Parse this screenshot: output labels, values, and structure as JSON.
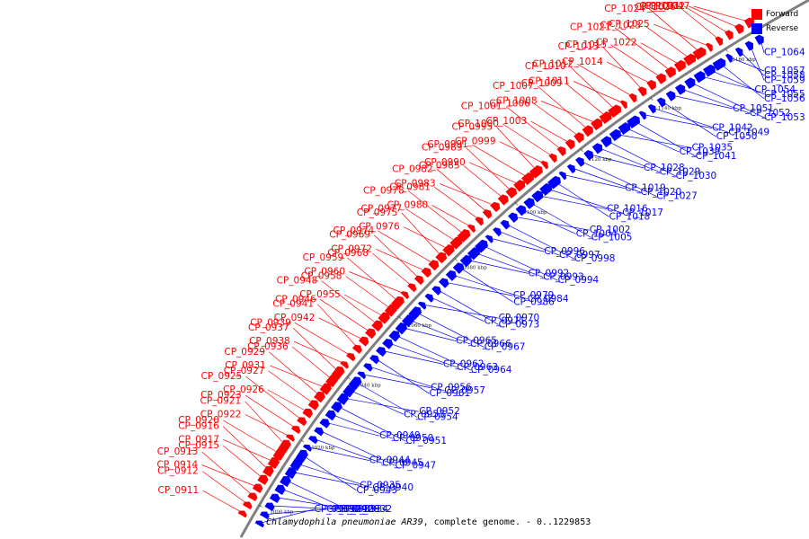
{
  "title": {
    "organism": "Chlamydophila pneumoniae AR39",
    "rest": ", complete genome. - 0..1229853"
  },
  "legend": [
    {
      "label": "Forward",
      "color": "#ff0000"
    },
    {
      "label": "Reverse",
      "color": "#0000ff"
    }
  ],
  "colors": {
    "forward": "#ff0000",
    "reverse": "#0000ff",
    "backbone": "#808080"
  },
  "scale_ticks": [
    "1000 kbp",
    "1020 kbp",
    "1040 kbp",
    "1060 kbp",
    "1080 kbp",
    "1100 kbp",
    "1120 kbp",
    "1140 kbp",
    "1160 kbp"
  ],
  "forward_genes": [
    "CP_0911",
    "CP_0912",
    "CP_0913",
    "CP_0914",
    "CP_0915",
    "CP_0916",
    "CP_0917",
    "CP_0920",
    "CP_0921",
    "CP_0922",
    "CP_0923",
    "CP_0925",
    "CP_0926",
    "CP_0927",
    "CP_0929",
    "CP_0931",
    "CP_0936",
    "CP_0937",
    "CP_0938",
    "CP_0939",
    "CP_0941",
    "CP_0942",
    "CP_0946",
    "CP_0948",
    "CP_0955",
    "CP_0958",
    "CP_0959",
    "CP_0960",
    "CP_0968",
    "CP_0969",
    "CP_0972",
    "CP_0974",
    "CP_0975",
    "CP_0976",
    "CP_0977",
    "CP_0978",
    "CP_0980",
    "CP_0981",
    "CP_0982",
    "CP_0983",
    "CP_0985",
    "CP_0989",
    "CP_0990",
    "CP_0991",
    "CP_0995",
    "CP_0999",
    "CP_1000",
    "CP_1001",
    "CP_1003",
    "CP_1006",
    "CP_1007",
    "CP_1008",
    "CP_1009",
    "CP_1010",
    "CP_1011",
    "CP_1012",
    "CP_1013",
    "CP_1014",
    "CP_1015",
    "CP_1021",
    "CP_1022",
    "CP_1023",
    "CP_1024",
    "CP_1025",
    "CP_1026",
    "CP_1031",
    "CP_1032",
    "CP_1047"
  ],
  "reverse_genes": [
    "CP_0919",
    "CP_0924",
    "CP_0928",
    "CP_0932",
    "CP_0933",
    "CP_0934",
    "CP_0935",
    "CP_0940",
    "CP_0943",
    "CP_0944",
    "CP_0945",
    "CP_0947",
    "CP_0949",
    "CP_0950",
    "CP_0951",
    "CP_0952",
    "CP_0953",
    "CP_0954",
    "CP_0956",
    "CP_0957",
    "CP_0961",
    "CP_0962",
    "CP_0963",
    "CP_0964",
    "CP_0965",
    "CP_0966",
    "CP_0967",
    "CP_0970",
    "CP_0971",
    "CP_0973",
    "CP_0979",
    "CP_0984",
    "CP_0986",
    "CP_0992",
    "CP_0993",
    "CP_0994",
    "CP_0996",
    "CP_0997",
    "CP_0998",
    "CP_1002",
    "CP_1004",
    "CP_1005",
    "CP_1016",
    "CP_1017",
    "CP_1018",
    "CP_1019",
    "CP_1020",
    "CP_1027",
    "CP_1028",
    "CP_1029",
    "CP_1030",
    "CP_1035",
    "CP_1039",
    "CP_1041",
    "CP_1042",
    "CP_1049",
    "CP_1050",
    "CP_1051",
    "CP_1052",
    "CP_1053",
    "CP_1054",
    "CP_1055",
    "CP_1056",
    "CP_1057",
    "CP_1058",
    "CP_1059",
    "CP_1064"
  ]
}
